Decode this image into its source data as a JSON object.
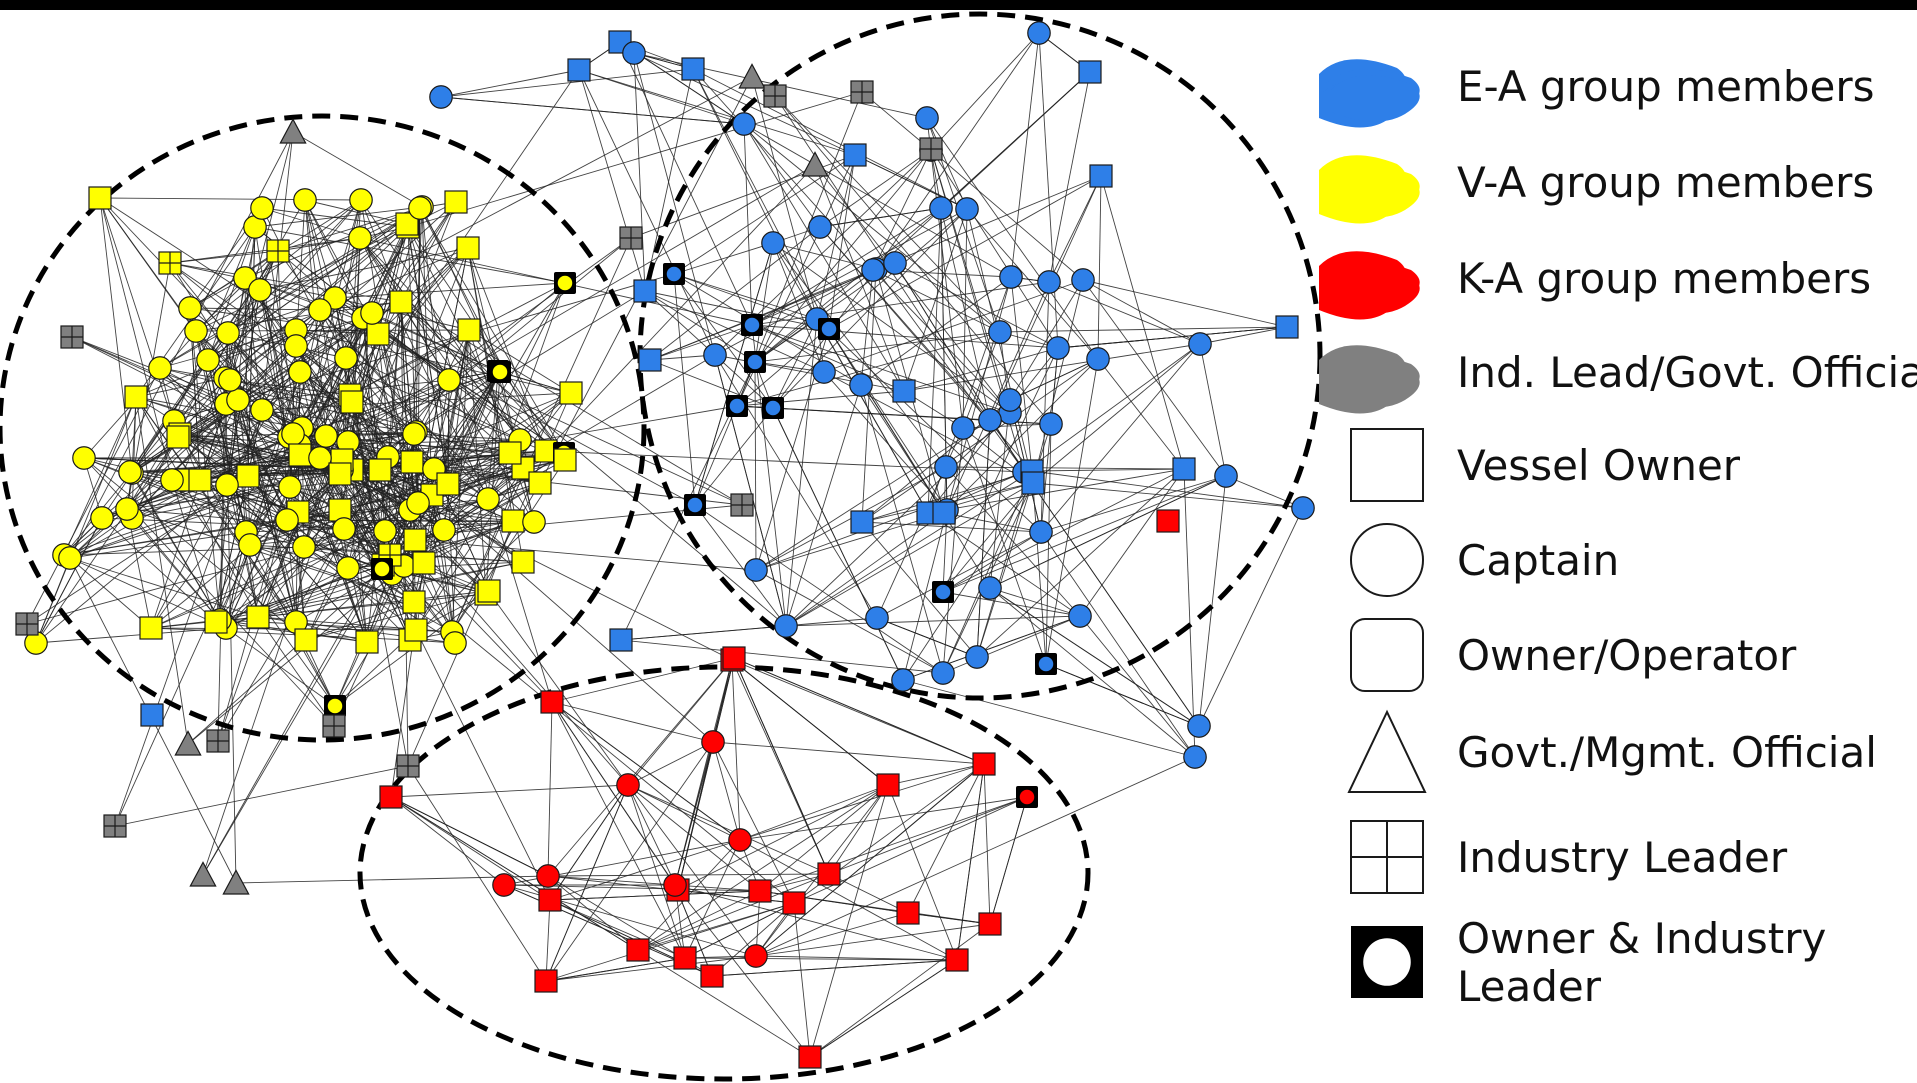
{
  "colors": {
    "ea": "#2e7fe8",
    "va": "#ffff00",
    "ka": "#ff0000",
    "gray": "#808080",
    "edge": "#222222"
  },
  "legend": {
    "color_items": [
      {
        "label": "E-A group members",
        "color": "#2e7fe8"
      },
      {
        "label": "V-A group members",
        "color": "#ffff00"
      },
      {
        "label": "K-A group members",
        "color": "#ff0000"
      },
      {
        "label": "Ind. Lead/Govt. Official",
        "color": "#808080"
      }
    ],
    "shape_items": [
      {
        "label": "Vessel Owner",
        "shape": "square"
      },
      {
        "label": "Captain",
        "shape": "circle"
      },
      {
        "label": "Owner/Operator",
        "shape": "rounded-square"
      },
      {
        "label": "Govt./Mgmt. Official",
        "shape": "triangle"
      },
      {
        "label": "Industry Leader",
        "shape": "grid-square"
      },
      {
        "label": "Owner & Industry Leader",
        "label_lines": [
          "Owner & Industry",
          "Leader"
        ],
        "shape": "black-square-white-circle"
      }
    ]
  }
}
